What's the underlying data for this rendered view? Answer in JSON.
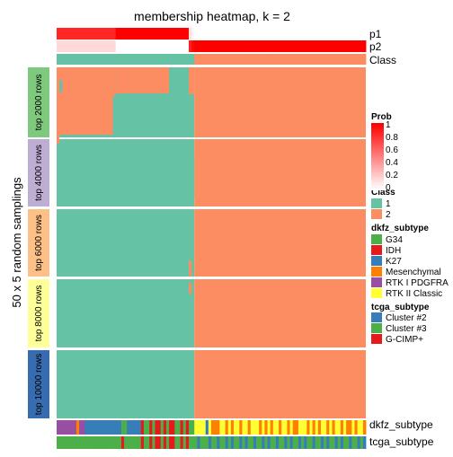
{
  "chart_data": {
    "type": "heatmap",
    "title": "membership heatmap, k = 2",
    "ylabel": "50 x 5 random samplings",
    "row_annotations": [
      "p1",
      "p2",
      "Class"
    ],
    "bottom_annotations": [
      "dkfz_subtype",
      "tcga_subtype"
    ],
    "groups": [
      {
        "label": "top 2000 rows",
        "color": "#7FC97F"
      },
      {
        "label": "top 4000 rows",
        "color": "#BEAED4"
      },
      {
        "label": "top 6000 rows",
        "color": "#FDC086"
      },
      {
        "label": "top 8000 rows",
        "color": "#FFFF99"
      },
      {
        "label": "top 10000 rows",
        "color": "#386CB0"
      }
    ],
    "p1": [
      0.85,
      0.85,
      0.85,
      0.85,
      0.85,
      0.85,
      0.85,
      0.85,
      0.85,
      0.85,
      0.85,
      0.85,
      0.85,
      0.85,
      0.85,
      0.85,
      0.85,
      0.85,
      0.85,
      0.85,
      0.85,
      1,
      1,
      1,
      1,
      1,
      1,
      1,
      1,
      1,
      1,
      1,
      1,
      1,
      1,
      1,
      1,
      1,
      1,
      1,
      1,
      1,
      1,
      1,
      1,
      1,
      1,
      0.12,
      0.03,
      0,
      0,
      0,
      0,
      0,
      0,
      0,
      0,
      0,
      0,
      0,
      0,
      0,
      0,
      0,
      0,
      0,
      0,
      0,
      0,
      0,
      0,
      0,
      0,
      0,
      0,
      0,
      0,
      0,
      0,
      0,
      0,
      0,
      0,
      0,
      0,
      0,
      0,
      0,
      0,
      0,
      0,
      0,
      0,
      0,
      0,
      0,
      0,
      0,
      0,
      0,
      0,
      0,
      0,
      0,
      0,
      0,
      0,
      0,
      0,
      0
    ],
    "class": [
      1,
      1,
      1,
      1,
      1,
      1,
      1,
      1,
      1,
      1,
      1,
      1,
      1,
      1,
      1,
      1,
      1,
      1,
      1,
      1,
      1,
      1,
      1,
      1,
      1,
      1,
      1,
      1,
      1,
      1,
      1,
      1,
      1,
      1,
      1,
      1,
      1,
      1,
      1,
      1,
      1,
      1,
      1,
      1,
      1,
      1,
      1,
      1,
      1,
      2,
      2,
      2,
      2,
      2,
      2,
      2,
      2,
      2,
      2,
      2,
      2,
      2,
      2,
      2,
      2,
      2,
      2,
      2,
      2,
      2,
      2,
      2,
      2,
      2,
      2,
      2,
      2,
      2,
      2,
      2,
      2,
      2,
      2,
      2,
      2,
      2,
      2,
      2,
      2,
      2,
      2,
      2,
      2,
      2,
      2,
      2,
      2,
      2,
      2,
      2,
      2,
      2,
      2,
      2,
      2,
      2,
      2,
      2,
      2,
      2,
      2,
      2
    ],
    "dkfz_subtype": [
      "RTK I PDGFRA",
      "RTK I PDGFRA",
      "RTK I PDGFRA",
      "RTK I PDGFRA",
      "RTK I PDGFRA",
      "RTK I PDGFRA",
      "RTK I PDGFRA",
      "Mesenchymal",
      "RTK I PDGFRA",
      "RTK I PDGFRA",
      "K27",
      "K27",
      "K27",
      "K27",
      "K27",
      "K27",
      "K27",
      "K27",
      "K27",
      "K27",
      "K27",
      "K27",
      "K27",
      "G34",
      "G34",
      "K27",
      "K27",
      "K27",
      "K27",
      "K27",
      "IDH",
      "G34",
      "G34",
      "IDH",
      "G34",
      "IDH",
      "IDH",
      "G34",
      "IDH",
      "G34",
      "IDH",
      "IDH",
      "G34",
      "G34",
      "IDH",
      "G34",
      "IDH",
      "G34",
      "G34",
      "RTK II Classic",
      "RTK II Classic",
      "RTK II Classic",
      "RTK II Classic",
      "K27",
      "RTK II Classic",
      "Mesenchymal",
      "Mesenchymal",
      "Mesenchymal",
      "RTK II Classic",
      "RTK II Classic",
      "Mesenchymal",
      "RTK II Classic",
      "Mesenchymal",
      "RTK II Classic",
      "RTK II Classic",
      "Mesenchymal",
      "RTK II Classic",
      "RTK II Classic",
      "Mesenchymal",
      "RTK II Classic",
      "RTK II Classic",
      "RTK II Classic",
      "Mesenchymal",
      "RTK II Classic",
      "Mesenchymal",
      "RTK II Classic",
      "Mesenchymal",
      "RTK II Classic",
      "RTK II Classic",
      "Mesenchymal",
      "RTK II Classic",
      "RTK II Classic",
      "Mesenchymal",
      "RTK II Classic",
      "Mesenchymal",
      "Mesenchymal",
      "RTK II Classic",
      "RTK II Classic",
      "RTK II Classic",
      "Mesenchymal",
      "RTK II Classic",
      "Mesenchymal",
      "RTK II Classic",
      "Mesenchymal",
      "RTK II Classic",
      "RTK II Classic",
      "Mesenchymal",
      "RTK II Classic",
      "Mesenchymal",
      "RTK II Classic",
      "RTK II Classic",
      "Mesenchymal",
      "RTK II Classic",
      "Mesenchymal",
      "Mesenchymal",
      "RTK II Classic",
      "Mesenchymal",
      "RTK II Classic",
      "RTK II Classic",
      "Mesenchymal"
    ],
    "tcga_subtype": [
      "Cluster #3",
      "Cluster #3",
      "Cluster #3",
      "Cluster #3",
      "Cluster #3",
      "Cluster #3",
      "Cluster #3",
      "Cluster #3",
      "Cluster #3",
      "Cluster #3",
      "Cluster #3",
      "Cluster #3",
      "Cluster #3",
      "Cluster #3",
      "Cluster #3",
      "Cluster #3",
      "Cluster #3",
      "Cluster #3",
      "Cluster #3",
      "Cluster #3",
      "Cluster #3",
      "Cluster #3",
      "Cluster #3",
      "G-CIMP+",
      "Cluster #3",
      "Cluster #3",
      "Cluster #3",
      "Cluster #3",
      "Cluster #3",
      "Cluster #3",
      "G-CIMP+",
      "Cluster #3",
      "Cluster #3",
      "G-CIMP+",
      "Cluster #3",
      "G-CIMP+",
      "G-CIMP+",
      "Cluster #3",
      "G-CIMP+",
      "Cluster #3",
      "G-CIMP+",
      "G-CIMP+",
      "Cluster #3",
      "Cluster #3",
      "G-CIMP+",
      "Cluster #3",
      "G-CIMP+",
      "Cluster #3",
      "Cluster #3",
      "Cluster #3",
      "Cluster #2",
      "Cluster #3",
      "Cluster #3",
      "Cluster #3",
      "Cluster #2",
      "Cluster #3",
      "Cluster #3",
      "Cluster #2",
      "Cluster #3",
      "Cluster #3",
      "Cluster #2",
      "Cluster #3",
      "Cluster #2",
      "Cluster #3",
      "Cluster #3",
      "Cluster #2",
      "Cluster #3",
      "Cluster #2",
      "Cluster #3",
      "Cluster #3",
      "Cluster #2",
      "Cluster #3",
      "Cluster #3",
      "Cluster #2",
      "Cluster #3",
      "Cluster #2",
      "Cluster #3",
      "Cluster #3",
      "Cluster #2",
      "Cluster #3",
      "Cluster #3",
      "Cluster #2",
      "Cluster #3",
      "Cluster #2",
      "Cluster #3",
      "Cluster #3",
      "Cluster #2",
      "Cluster #3",
      "Cluster #2",
      "Cluster #3",
      "Cluster #3",
      "Cluster #2",
      "Cluster #3",
      "Cluster #3",
      "Cluster #2",
      "Cluster #3",
      "Cluster #2",
      "Cluster #3",
      "Cluster #3",
      "Cluster #2",
      "Cluster #3",
      "Cluster #2",
      "Cluster #3",
      "Cluster #3",
      "Cluster #2",
      "Cluster #3",
      "Cluster #3",
      "Cluster #2",
      "Cluster #3",
      "Cluster #2"
    ],
    "legend": {
      "prob": {
        "title": "Prob",
        "ticks": [
          "1",
          "0.8",
          "0.6",
          "0.4",
          "0.2",
          "0"
        ]
      },
      "class": {
        "title": "Class",
        "items": [
          {
            "label": "1",
            "color": "#66C2A5"
          },
          {
            "label": "2",
            "color": "#FC8D62"
          }
        ]
      },
      "dkfz_subtype": {
        "title": "dkfz_subtype",
        "items": [
          {
            "label": "G34",
            "color": "#4DAF4A"
          },
          {
            "label": "IDH",
            "color": "#E41A1C"
          },
          {
            "label": "K27",
            "color": "#377EB8"
          },
          {
            "label": "Mesenchymal",
            "color": "#FF7F00"
          },
          {
            "label": "RTK I PDGFRA",
            "color": "#984EA3"
          },
          {
            "label": "RTK II Classic",
            "color": "#FFFF33"
          }
        ]
      },
      "tcga_subtype": {
        "title": "tcga_subtype",
        "items": [
          {
            "label": "Cluster #2",
            "color": "#377EB8"
          },
          {
            "label": "Cluster #3",
            "color": "#4DAF4A"
          },
          {
            "label": "G-CIMP+",
            "color": "#E41A1C"
          }
        ]
      }
    }
  },
  "colors": {
    "class1": "#66C2A5",
    "class2": "#FC8D62",
    "prob_high": "#FF0000",
    "prob_low": "#FFFFFF"
  }
}
